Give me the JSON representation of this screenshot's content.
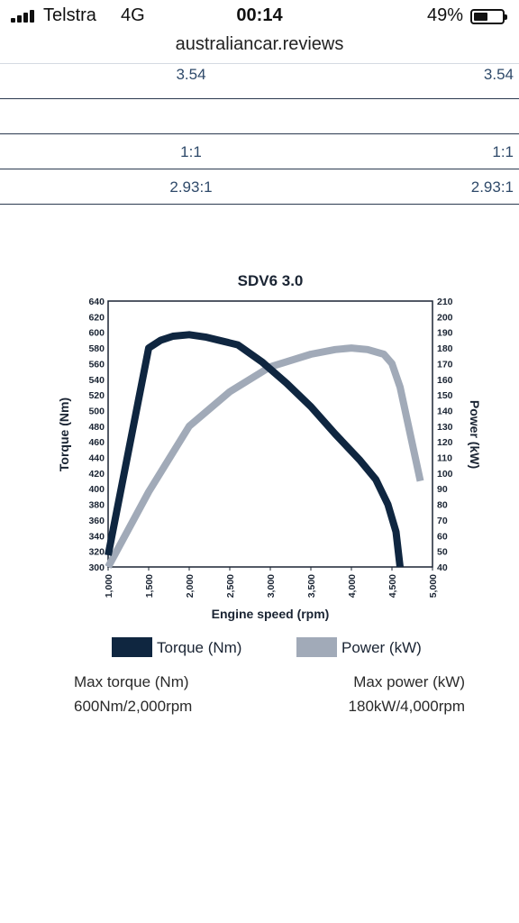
{
  "status_bar": {
    "carrier": "Telstra",
    "network": "4G",
    "time": "00:14",
    "battery": "49%"
  },
  "browser": {
    "url": "australiancar.reviews"
  },
  "spec_table": {
    "rows": [
      {
        "col1": "3.54",
        "col2": "3.54"
      },
      {
        "col1": "",
        "col2": ""
      },
      {
        "col1": "1:1",
        "col2": "1:1"
      },
      {
        "col1": "2.93:1",
        "col2": "2.93:1"
      }
    ]
  },
  "chart_data": {
    "type": "line",
    "title": "SDV6 3.0",
    "xlabel": "Engine speed (rpm)",
    "ylabel_left": "Torque (Nm)",
    "ylabel_right": "Power (kW)",
    "xlim": [
      1000,
      5000
    ],
    "ylim_left": [
      300,
      640
    ],
    "ylim_right": [
      40,
      210
    ],
    "x_ticks": [
      "1,000",
      "1,500",
      "2,000",
      "2,500",
      "3,000",
      "3,500",
      "4,000",
      "4,500",
      "5,000"
    ],
    "y_left_ticks": [
      "640",
      "620",
      "600",
      "580",
      "560",
      "540",
      "520",
      "500",
      "480",
      "460",
      "440",
      "420",
      "400",
      "380",
      "360",
      "340",
      "320",
      "300"
    ],
    "y_right_ticks": [
      "210",
      "200",
      "190",
      "180",
      "170",
      "160",
      "150",
      "140",
      "130",
      "120",
      "110",
      "100",
      "90",
      "80",
      "70",
      "60",
      "50",
      "40"
    ],
    "grid": false,
    "legend_position": "bottom",
    "series": [
      {
        "name": "Torque (Nm)",
        "axis": "left",
        "color": "#0f2640",
        "x": [
          1000,
          1500,
          1650,
          1800,
          2000,
          2200,
          2600,
          2900,
          3200,
          3500,
          3800,
          4100,
          4300,
          4450,
          4550,
          4600
        ],
        "y": [
          315,
          580,
          590,
          595,
          597,
          594,
          584,
          562,
          535,
          505,
          470,
          437,
          412,
          380,
          345,
          300
        ]
      },
      {
        "name": "Power (kW)",
        "axis": "right",
        "color": "#a1aab8",
        "x": [
          1000,
          1500,
          2000,
          2500,
          3000,
          3500,
          3800,
          4000,
          4200,
          4400,
          4500,
          4600,
          4850
        ],
        "y": [
          40,
          88,
          130,
          152,
          168,
          176,
          179,
          180,
          179,
          176,
          170,
          155,
          95
        ]
      }
    ]
  },
  "legend": {
    "torque": "Torque (Nm)",
    "power": "Power (kW)"
  },
  "summary": {
    "max_torque_label": "Max torque (Nm)",
    "max_torque_value": "600Nm/2,000rpm",
    "max_power_label": "Max power (kW)",
    "max_power_value": "180kW/4,000rpm"
  },
  "colors": {
    "torque": "#0f2640",
    "power": "#a1aab8",
    "table_text": "#2f4a6a"
  }
}
